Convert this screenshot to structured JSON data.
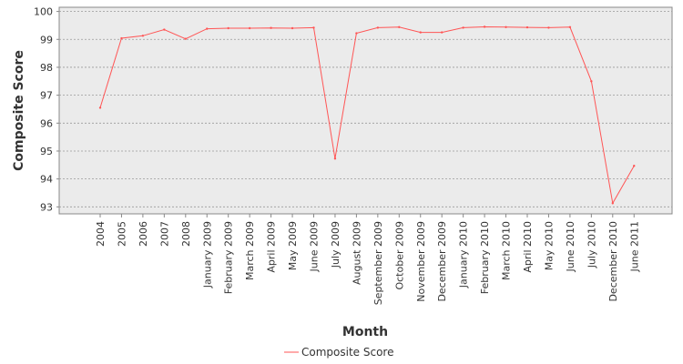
{
  "chart_data": {
    "type": "line",
    "title": "",
    "xlabel": "Month",
    "ylabel": "Composite Score",
    "categories": [
      "2004",
      "2005",
      "2006",
      "2007",
      "2008",
      "January 2009",
      "February 2009",
      "March 2009",
      "April 2009",
      "May 2009",
      "June 2009",
      "July 2009",
      "August 2009",
      "September 2009",
      "October 2009",
      "November 2009",
      "December 2009",
      "January 2010",
      "February 2010",
      "March 2010",
      "April 2010",
      "May 2010",
      "June 2010",
      "July 2010",
      "December 2010",
      "June 2011"
    ],
    "series": [
      {
        "name": "Composite Score",
        "color": "#ff5555",
        "values": [
          96.55,
          99.04,
          99.13,
          99.35,
          99.02,
          99.38,
          99.4,
          99.4,
          99.41,
          99.4,
          99.42,
          94.73,
          99.22,
          99.42,
          99.44,
          99.25,
          99.25,
          99.42,
          99.45,
          99.44,
          99.43,
          99.42,
          99.44,
          97.5,
          93.13,
          94.47
        ]
      }
    ],
    "ylim": [
      92.75,
      100.15
    ],
    "yticks": [
      93,
      94,
      95,
      96,
      97,
      98,
      99,
      100
    ],
    "grid": true,
    "legend_position": "bottom-center",
    "plot_background": "#ebebeb"
  }
}
